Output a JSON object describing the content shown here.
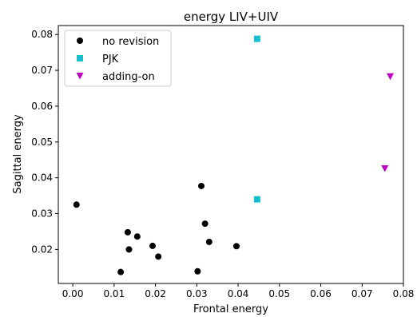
{
  "chart_data": {
    "type": "scatter",
    "title": "energy LIV+UIV",
    "xlabel": "Frontal energy",
    "ylabel": "Sagittal energy",
    "xlim": [
      -0.0035,
      0.08
    ],
    "ylim": [
      0.0105,
      0.0825
    ],
    "xticks": [
      "0.00",
      "0.01",
      "0.02",
      "0.03",
      "0.04",
      "0.05",
      "0.06",
      "0.07",
      "0.08"
    ],
    "xtick_values": [
      0.0,
      0.01,
      0.02,
      0.03,
      0.04,
      0.05,
      0.06,
      0.07,
      0.08
    ],
    "yticks": [
      "0.02",
      "0.03",
      "0.04",
      "0.05",
      "0.06",
      "0.07",
      "0.08"
    ],
    "ytick_values": [
      0.02,
      0.03,
      0.04,
      0.05,
      0.06,
      0.07,
      0.08
    ],
    "grid": false,
    "legend_position": "top-left",
    "series": [
      {
        "name": "no revision",
        "marker": "circle",
        "color": "#000000",
        "points": [
          {
            "x": 0.0009,
            "y": 0.0325
          },
          {
            "x": 0.0116,
            "y": 0.0137
          },
          {
            "x": 0.0133,
            "y": 0.0248
          },
          {
            "x": 0.0136,
            "y": 0.02
          },
          {
            "x": 0.0156,
            "y": 0.0236
          },
          {
            "x": 0.0193,
            "y": 0.021
          },
          {
            "x": 0.0207,
            "y": 0.018
          },
          {
            "x": 0.0302,
            "y": 0.0139
          },
          {
            "x": 0.0311,
            "y": 0.0377
          },
          {
            "x": 0.032,
            "y": 0.0272
          },
          {
            "x": 0.033,
            "y": 0.0221
          },
          {
            "x": 0.0396,
            "y": 0.0209
          }
        ]
      },
      {
        "name": "PJK",
        "marker": "square",
        "color": "#17becf",
        "points": [
          {
            "x": 0.0446,
            "y": 0.0788
          },
          {
            "x": 0.0446,
            "y": 0.034
          }
        ]
      },
      {
        "name": "adding-on",
        "marker": "triangle-down",
        "color": "#bf00bf",
        "points": [
          {
            "x": 0.0768,
            "y": 0.0683
          },
          {
            "x": 0.0755,
            "y": 0.0426
          }
        ]
      }
    ]
  }
}
